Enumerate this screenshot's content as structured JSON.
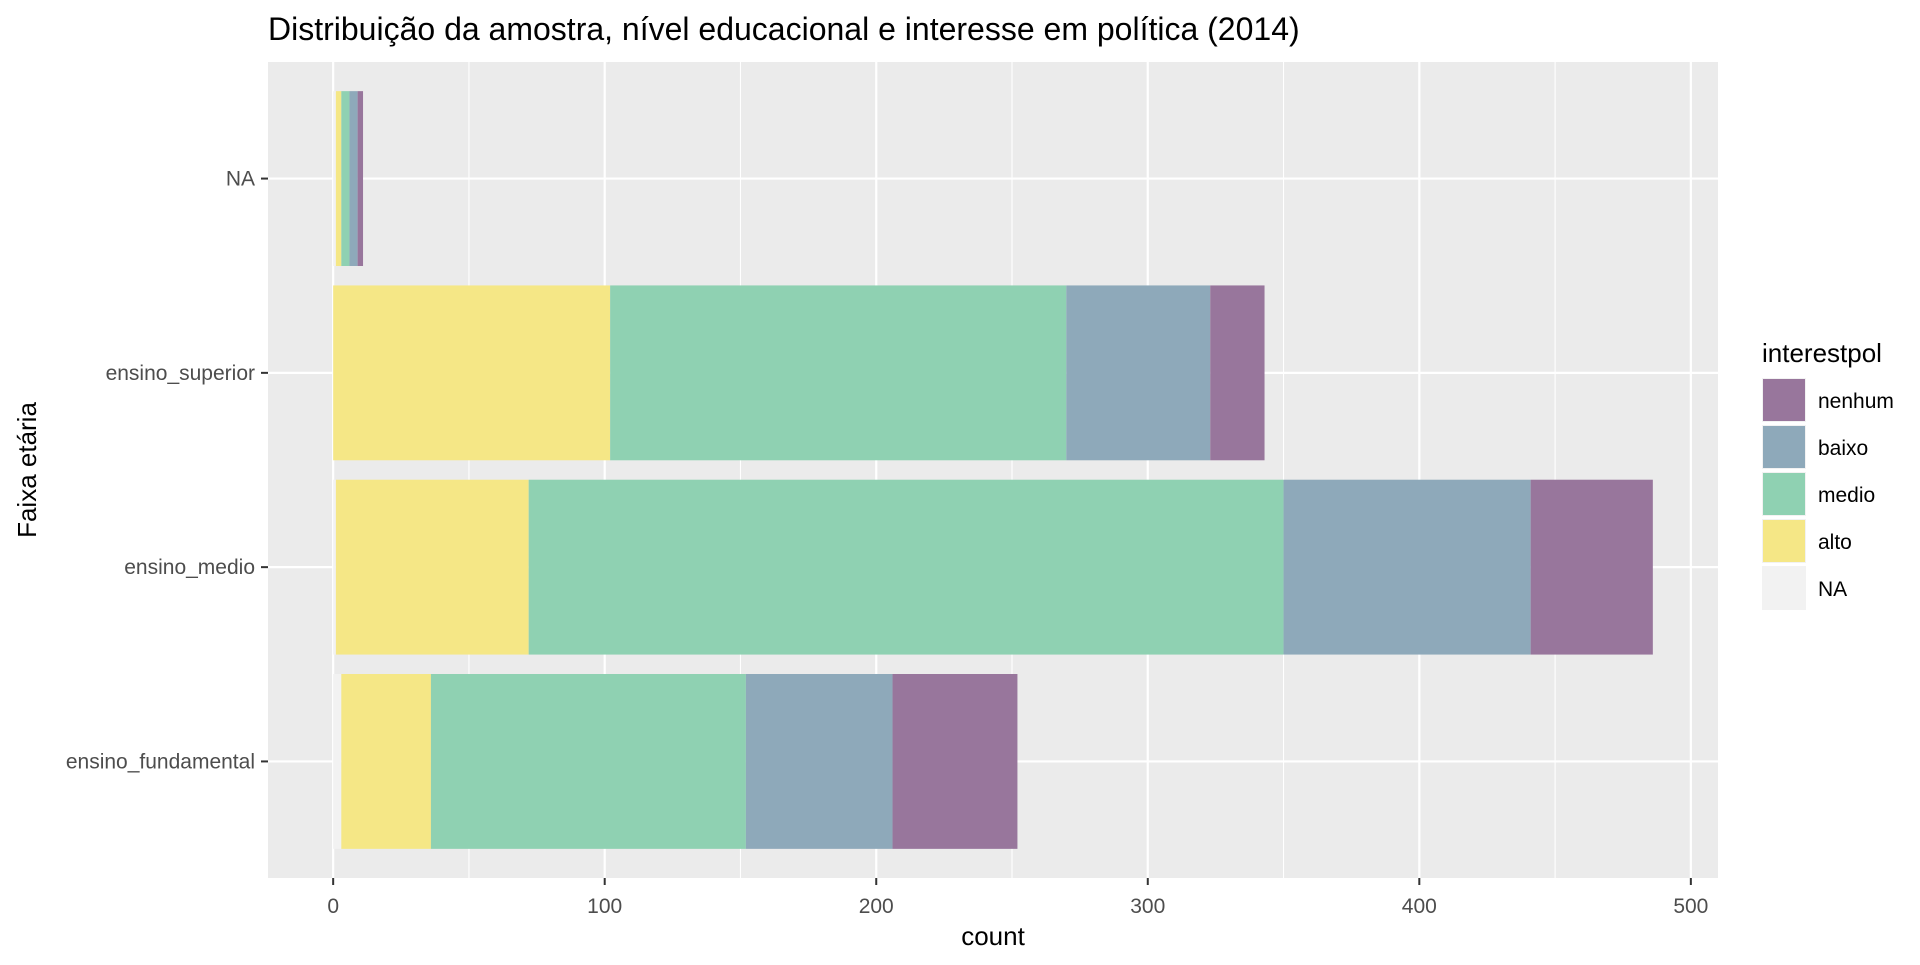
{
  "chart_data": {
    "type": "bar",
    "orientation": "horizontal",
    "stacked": true,
    "title": "Distribuição da amostra, nível educacional e interesse em política (2014)",
    "xlabel": "count",
    "ylabel": "Faixa etária",
    "categories": [
      "ensino_fundamental",
      "ensino_medio",
      "ensino_superior",
      "NA"
    ],
    "x_ticks": [
      0,
      100,
      200,
      300,
      400,
      500
    ],
    "xlim": [
      -24,
      510
    ],
    "grid": true,
    "legend": {
      "title": "interestpol",
      "position": "right",
      "entries": [
        "nenhum",
        "baixo",
        "medio",
        "alto",
        "NA"
      ]
    },
    "series": [
      {
        "name": "NA",
        "color": "#F2F2F2",
        "values": [
          3,
          1,
          0,
          1
        ]
      },
      {
        "name": "alto",
        "color": "#F5E786",
        "values": [
          33,
          71,
          102,
          2
        ]
      },
      {
        "name": "medio",
        "color": "#8FD1B2",
        "values": [
          116,
          278,
          168,
          3
        ]
      },
      {
        "name": "baixo",
        "color": "#8EA9BA",
        "values": [
          54,
          91,
          53,
          3
        ]
      },
      {
        "name": "nenhum",
        "color": "#98769C",
        "values": [
          46,
          45,
          20,
          2
        ]
      }
    ],
    "panel_background": "#EBEBEB",
    "grid_color": "#FFFFFF"
  }
}
